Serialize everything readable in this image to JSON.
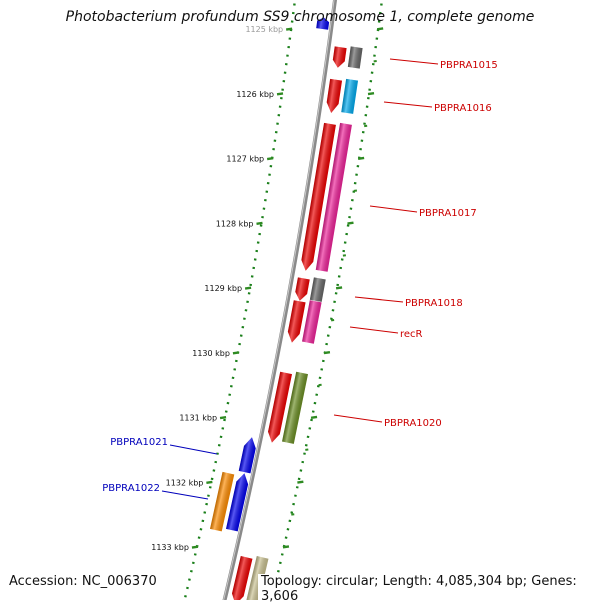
{
  "title": "Photobacterium profundum SS9 chromosome 1, complete genome",
  "accession": "Accession: NC_006370",
  "topology": "Topology: circular; Length: 4,085,304 bp; Genes: 3,606",
  "ticks": [
    "1125 kbp",
    "1126 kbp",
    "1127 kbp",
    "1128 kbp",
    "1129 kbp",
    "1130 kbp",
    "1131 kbp",
    "1132 kbp",
    "1133 kbp"
  ],
  "colors": {
    "backbone": "#8a8a8a",
    "tick_mark": "#2e8b22",
    "forward_label": "#cc0000",
    "reverse_label": "#0000bb",
    "red": "#ee0000",
    "gray": "#666666",
    "cyan": "#00aaee",
    "pink": "#ee2299",
    "olive": "#6b8e23",
    "blue": "#0000ee",
    "orange": "#ff8c00",
    "khaki": "#c8c090"
  },
  "genes": [
    {
      "label": "",
      "strand": "reverse",
      "start": 1124.82,
      "end": 1125.0,
      "color": "blue"
    },
    {
      "label": "",
      "strand": "forward",
      "start": 1125.28,
      "end": 1125.6,
      "color": "red",
      "cog": "gray"
    },
    {
      "label": "",
      "strand": "forward",
      "start": 1125.78,
      "end": 1126.3,
      "color": "red",
      "cog": "cyan"
    },
    {
      "label": "",
      "strand": "forward",
      "start": 1126.45,
      "end": 1128.75,
      "color": "red",
      "cog": "pink"
    },
    {
      "label": "",
      "strand": "forward",
      "start": 1128.85,
      "end": 1129.2,
      "color": "red",
      "cog": "gray"
    },
    {
      "label": "",
      "strand": "forward",
      "start": 1129.2,
      "end": 1129.85,
      "color": "red",
      "cog": "pink"
    },
    {
      "label": "",
      "strand": "forward",
      "start": 1130.3,
      "end": 1131.4,
      "color": "red",
      "cog": "olive"
    },
    {
      "label": "",
      "strand": "reverse",
      "start": 1131.3,
      "end": 1131.85,
      "color": "blue"
    },
    {
      "label": "",
      "strand": "reverse",
      "start": 1131.85,
      "end": 1132.75,
      "color": "blue",
      "cog": "orange"
    },
    {
      "label": "",
      "strand": "forward",
      "start": 1133.15,
      "end": 1133.9,
      "color": "red",
      "cog": "khaki"
    }
  ],
  "labels": [
    {
      "text": "PBPRA1015",
      "strand": "forward"
    },
    {
      "text": "PBPRA1016",
      "strand": "forward"
    },
    {
      "text": "PBPRA1017",
      "strand": "forward"
    },
    {
      "text": "PBPRA1018",
      "strand": "forward"
    },
    {
      "text": "recR",
      "strand": "forward"
    },
    {
      "text": "PBPRA1020",
      "strand": "forward"
    },
    {
      "text": "PBPRA1021",
      "strand": "reverse"
    },
    {
      "text": "PBPRA1022",
      "strand": "reverse"
    }
  ]
}
